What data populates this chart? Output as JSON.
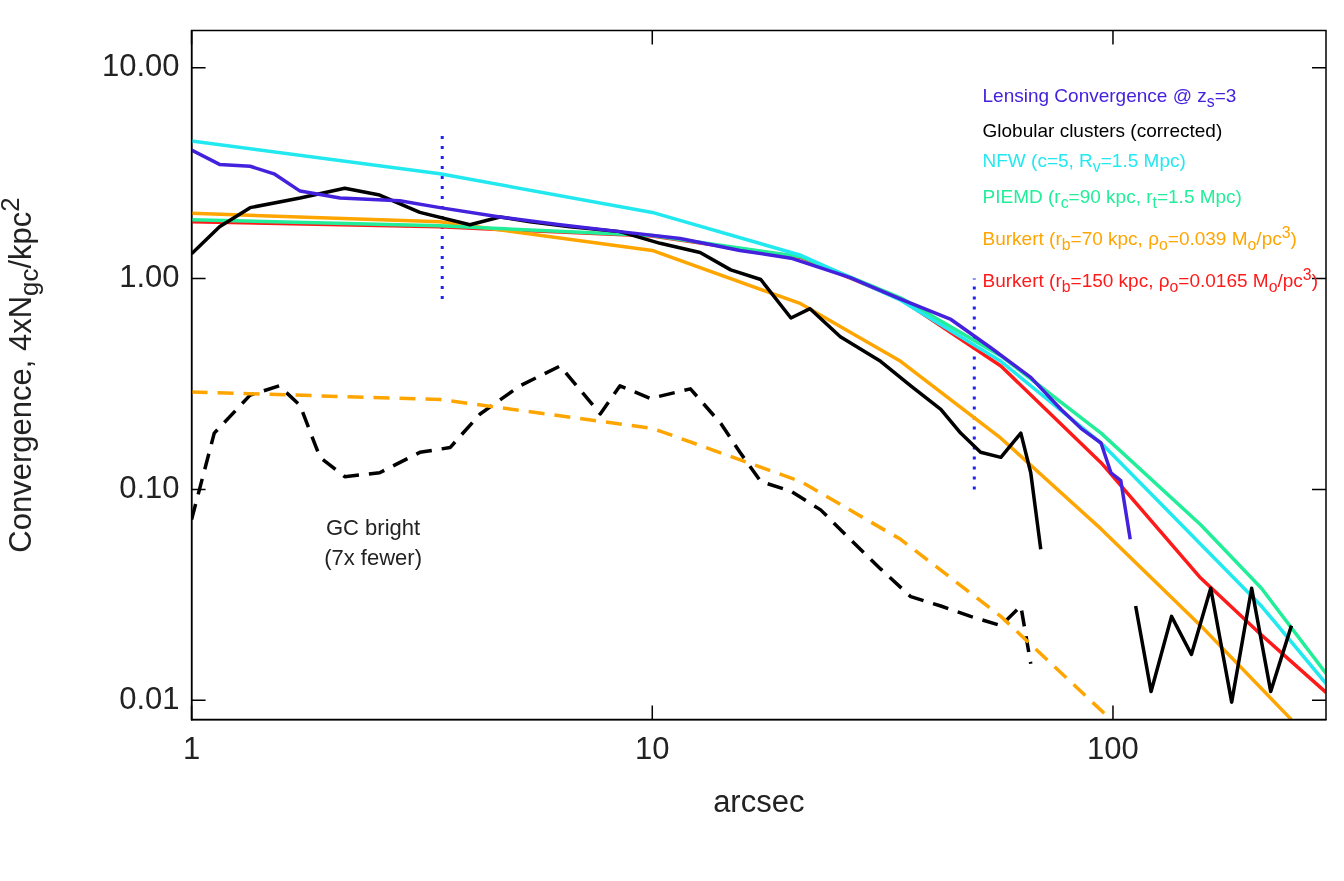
{
  "chart_data": {
    "type": "line",
    "xlabel": "arcsec",
    "ylabel": "Convergence, 4xN$_{gc}$/kpc$^{2}$",
    "log": "xy",
    "grid": false,
    "legend": "top right",
    "xlim": [
      1,
      290
    ],
    "ylim": [
      0.0081,
      15
    ],
    "xticks": [
      1,
      10,
      100
    ],
    "yticks": [
      {
        "value": 10,
        "label": "10.00"
      },
      {
        "value": 1,
        "label": "1.00"
      },
      {
        "value": 0.1,
        "label": "0.10"
      },
      {
        "value": 0.01,
        "label": "0.01"
      }
    ],
    "annotations": [
      "GC bright\n(7x fewer)"
    ],
    "series": [
      {
        "name": "Lensing Convergence @ z$_{s}$=3",
        "color": "#4422dd",
        "line_style": "solid",
        "x": [
          1,
          1.15,
          1.34,
          1.51,
          1.72,
          2.1,
          2.83,
          3.46,
          4.67,
          6.31,
          8.51,
          11.5,
          15.5,
          20,
          26.9,
          34.6,
          44.5,
          54.3,
          66.3,
          77.1,
          85.2,
          94.2,
          99,
          104,
          109
        ],
        "values": [
          4.07,
          3.48,
          3.41,
          3.14,
          2.6,
          2.41,
          2.34,
          2.17,
          1.96,
          1.8,
          1.67,
          1.55,
          1.36,
          1.25,
          1.01,
          0.8,
          0.64,
          0.47,
          0.34,
          0.24,
          0.195,
          0.166,
          0.12,
          0.11,
          0.058
        ]
      },
      {
        "name": "Globular clusters (corrected)",
        "color": "#000000",
        "line_style": "solid",
        "x": [
          1,
          1.15,
          1.34,
          1.72,
          2.15,
          2.56,
          3.13,
          4.02,
          4.67,
          5.43,
          6.63,
          8.51,
          10.4,
          12.7,
          14.8,
          17.2,
          20,
          22,
          25.6,
          31.3,
          36.4,
          42.3,
          46.7,
          51.6,
          57.1,
          63.1,
          66.3,
          69.7,
          77.1,
          112,
          121,
          134,
          148,
          163,
          181,
          200,
          220,
          244
        ],
        "values": [
          1.31,
          1.76,
          2.17,
          2.41,
          2.68,
          2.49,
          2.06,
          1.8,
          1.96,
          1.86,
          1.76,
          1.67,
          1.47,
          1.33,
          1.1,
          0.99,
          0.65,
          0.72,
          0.53,
          0.405,
          0.31,
          0.24,
          0.185,
          0.15,
          0.142,
          0.185,
          0.12,
          0.052,
          null,
          0.028,
          0.011,
          0.025,
          0.0165,
          0.034,
          0.0098,
          0.034,
          0.011,
          0.0226
        ]
      },
      {
        "name": "NFW (c=5, R$_{v}$=1.5 Mpc)",
        "color": "#22e8f0",
        "line_style": "solid",
        "x": [
          1,
          3.46,
          10,
          21,
          34.6,
          57.1,
          94.2,
          155,
          210,
          290
        ],
        "values": [
          4.49,
          3.14,
          2.06,
          1.29,
          0.79,
          0.405,
          0.166,
          0.055,
          0.028,
          0.012
        ]
      },
      {
        "name": "PIEMD (r$_{c}$=90 kpc, r$_{t}$=1.5 Mpc)",
        "color": "#22ee99",
        "line_style": "solid",
        "x": [
          1,
          3.46,
          10,
          21,
          34.6,
          57.1,
          94.2,
          155,
          210,
          290
        ],
        "values": [
          1.9,
          1.78,
          1.6,
          1.27,
          0.81,
          0.43,
          0.185,
          0.068,
          0.034,
          0.0134
        ]
      },
      {
        "name": "Burkert (r$_{b}$=70 kpc, ρ$_{o}$=0.039 M$_{o}$/pc$^{3}$)",
        "color": "#ffa500",
        "line_style": "solid",
        "x": [
          1,
          3.46,
          10,
          21,
          34.6,
          57.1,
          94.2,
          155,
          244
        ],
        "values": [
          2.04,
          1.86,
          1.36,
          0.76,
          0.405,
          0.175,
          0.065,
          0.0226,
          0.0081
        ]
      },
      {
        "name": "Burkert (r$_{b}$=150 kpc, ρ$_{o}$=0.0165 M$_{o}$/pc$^{3}$)",
        "color": "#ff1a1a",
        "line_style": "solid",
        "x": [
          1,
          3.46,
          10,
          21,
          34.6,
          57.1,
          94.2,
          155,
          210,
          290
        ],
        "values": [
          1.86,
          1.76,
          1.59,
          1.26,
          0.8,
          0.385,
          0.134,
          0.038,
          0.0204,
          0.0109
        ]
      },
      {
        "color": "#ffa500",
        "line_style": "dashed",
        "x": [
          1,
          3.46,
          10,
          21,
          34.6,
          57.1,
          99
        ],
        "values": [
          0.29,
          0.267,
          0.195,
          0.109,
          0.058,
          0.025,
          0.0081
        ]
      },
      {
        "color": "#000000",
        "line_style": "dashed",
        "x": [
          1,
          1.12,
          1.34,
          1.55,
          1.72,
          1.9,
          2.15,
          2.56,
          3.13,
          3.64,
          4.23,
          5.16,
          6.31,
          7.71,
          8.51,
          9.9,
          12.1,
          14.1,
          15.5,
          17.2,
          20,
          23.2,
          26.9,
          31.3,
          36.4,
          42.3,
          49.1,
          57.1,
          63.1,
          66.3
        ],
        "values": [
          0.072,
          0.185,
          0.28,
          0.31,
          0.25,
          0.142,
          0.115,
          0.12,
          0.15,
          0.158,
          0.228,
          0.31,
          0.385,
          0.228,
          0.31,
          0.27,
          0.3,
          0.205,
          0.15,
          0.109,
          0.098,
          0.08,
          0.058,
          0.042,
          0.031,
          0.028,
          0.025,
          0.0226,
          0.028,
          0.0149
        ]
      },
      {
        "color": "#2222ee",
        "line_style": "dotted",
        "x": [
          3.5,
          3.5
        ],
        "values": [
          0.8,
          5
        ]
      },
      {
        "color": "#2222ee",
        "line_style": "dotted",
        "x": [
          50,
          50
        ],
        "values": [
          0.1,
          1
        ]
      }
    ]
  }
}
